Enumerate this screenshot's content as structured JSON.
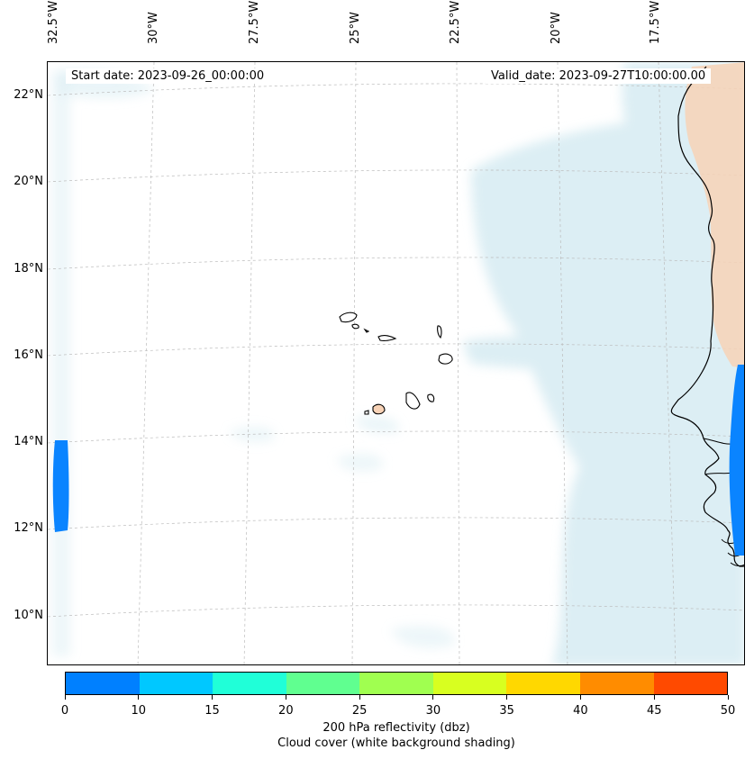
{
  "map": {
    "start_date": "Start date: 2023-09-26_00:00:00",
    "valid_date": "Valid_date: 2023-09-27T10:00:00.00",
    "lon_labels": [
      "32.5°W",
      "30°W",
      "27.5°W",
      "25°W",
      "22.5°W",
      "20°W",
      "17.5°W"
    ],
    "lat_labels": [
      "22°N",
      "20°N",
      "18°N",
      "16°N",
      "14°N",
      "12°N",
      "10°N"
    ]
  },
  "colorbar": {
    "ticks": [
      "0",
      "10",
      "15",
      "20",
      "25",
      "30",
      "35",
      "40",
      "45",
      "50"
    ],
    "colors": [
      "#0080ff",
      "#00c8ff",
      "#20ffd8",
      "#60ff90",
      "#a0ff50",
      "#d8ff20",
      "#ffd800",
      "#ff8c00",
      "#ff4a00"
    ],
    "label": "200 hPa reflectivity (dbz)",
    "sublabel": "Cloud cover (white background shading)"
  },
  "colors": {
    "cloud": "#d6ebf2",
    "land_warm": "#f7d2b6",
    "reflectivity": "#0a84ff",
    "coast": "#000000",
    "grid": "#bbbbbb"
  }
}
